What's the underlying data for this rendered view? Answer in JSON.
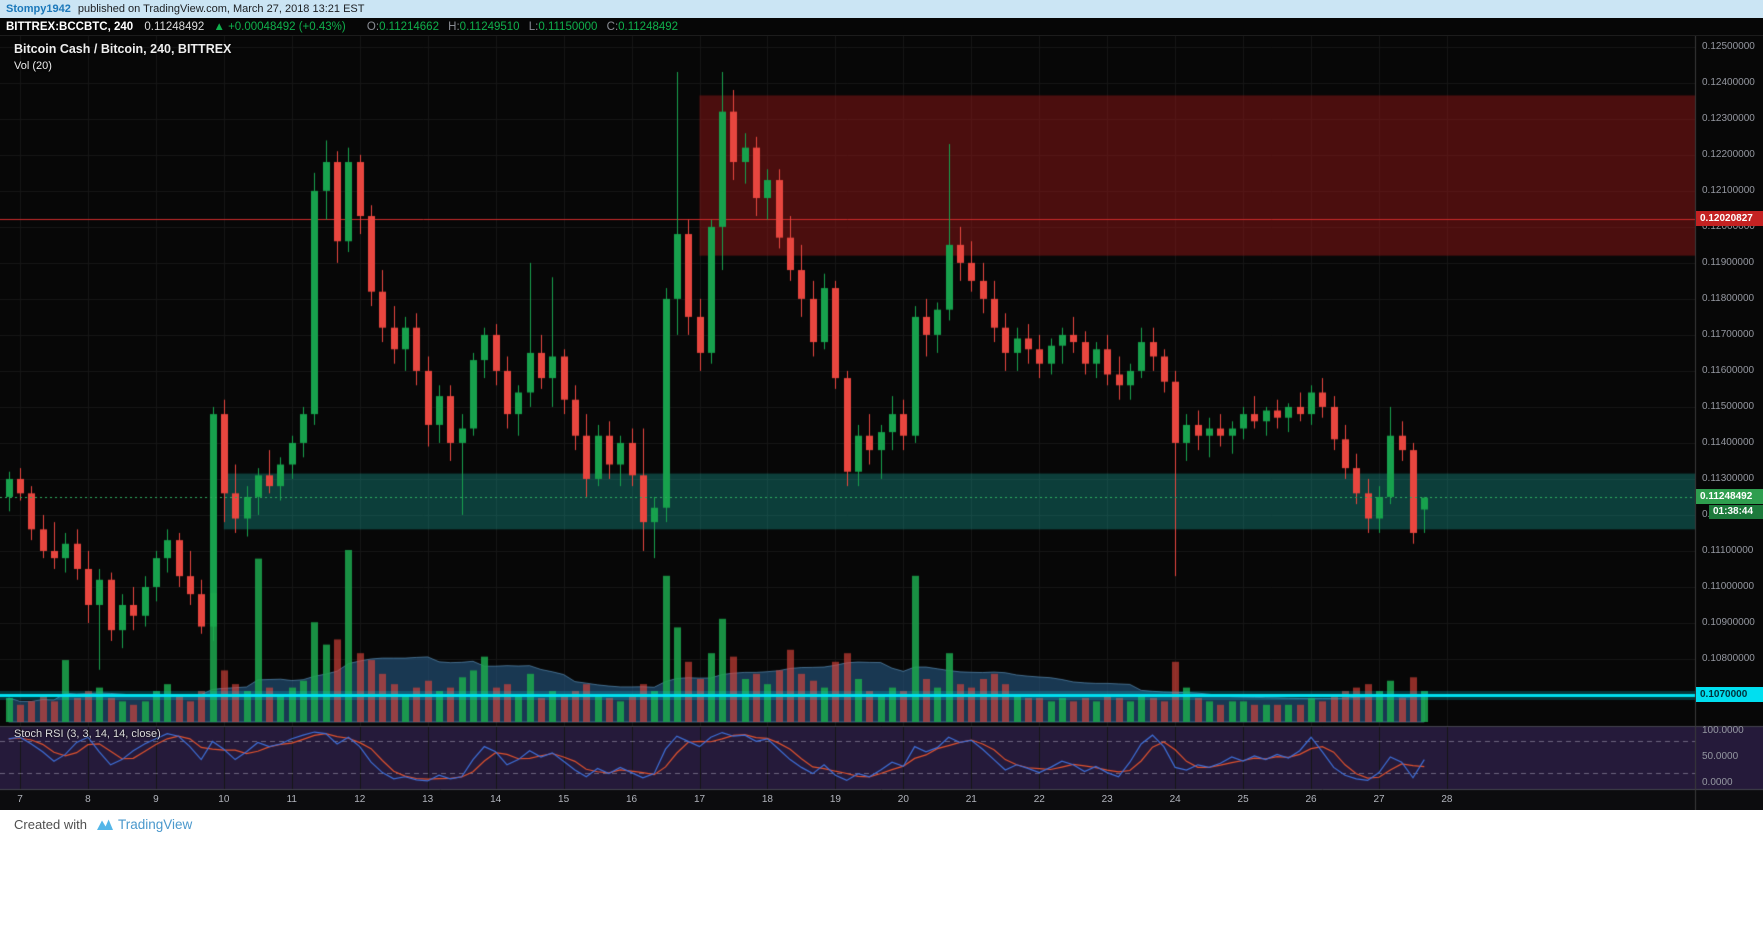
{
  "attribution": {
    "author": "Stompy1942",
    "text": "published on TradingView.com, March 27, 2018 13:21 EST"
  },
  "header": {
    "symbol": "BITTREX:BCCBTC, 240",
    "last_price": "0.11248492",
    "up_arrow": "▲",
    "change": "+0.00048492 (+0.43%)",
    "o_label": "O:",
    "o_value": "0.11214662",
    "h_label": "H:",
    "h_value": "0.11249510",
    "l_label": "L:",
    "l_value": "0.11150000",
    "c_label": "C:",
    "c_value": "0.11248492"
  },
  "legend": {
    "title": "Bitcoin Cash / Bitcoin, 240, BITTREX",
    "indicator": "Vol (20)"
  },
  "stoch_panel": {
    "label": "Stoch RSI (3, 3, 14, 14, close)",
    "axis_labels": [
      "100.0000",
      "50.0000",
      "0.0000"
    ],
    "axis_values": [
      100,
      50,
      0
    ],
    "upper_band": 80,
    "lower_band": 20
  },
  "price_axis": {
    "labels": [
      "0.12500000",
      "0.12400000",
      "0.12300000",
      "0.12200000",
      "0.12100000",
      "0.12000000",
      "0.11900000",
      "0.11800000",
      "0.11700000",
      "0.11600000",
      "0.11500000",
      "0.11400000",
      "0.11300000",
      "0.11200000",
      "0.11100000",
      "0.11000000",
      "0.10900000",
      "0.10800000"
    ],
    "values": [
      0.125,
      0.124,
      0.123,
      0.122,
      0.121,
      0.12,
      0.119,
      0.118,
      0.117,
      0.116,
      0.115,
      0.114,
      0.113,
      0.112,
      0.111,
      0.11,
      0.109,
      0.108
    ]
  },
  "time_axis": {
    "labels": [
      "7",
      "8",
      "9",
      "10",
      "11",
      "12",
      "13",
      "14",
      "15",
      "16",
      "17",
      "18",
      "19",
      "20",
      "21",
      "22",
      "23",
      "24",
      "25",
      "26",
      "27",
      "28"
    ]
  },
  "tags": {
    "red_line_label": "0.12020827",
    "last_price_label": "0.11248492",
    "countdown_label": "01:38:44",
    "cyan_line_label": "0.1070000"
  },
  "footer": {
    "created_with": "Created with",
    "brand": "TradingView"
  },
  "colors": {
    "chart_bg": "#070707",
    "grid": "#161616",
    "up": "#17a14d",
    "down": "#e8463f",
    "vol_up": "rgba(28,168,78,0.85)",
    "vol_down": "rgba(226,70,60,0.62)",
    "vol_ma_fill": "rgba(40,96,144,0.55)",
    "vol_ma_stroke": "rgba(110,170,215,0.55)",
    "red_line": "#cc2b2b",
    "last_price_line": "#2fae5f",
    "cyan_line": "#00dff0",
    "cyan_glow": "rgba(0,223,240,0.22)",
    "zone_resistance": "rgba(170,25,25,0.42)",
    "zone_support": "rgba(21,160,150,0.36)",
    "stoch_bg": "#251a3a",
    "stoch_k": "#3e6fd8",
    "stoch_d": "#e0522e",
    "stoch_band": "rgba(225,220,240,0.38)",
    "time_strip_bg": "#0c0c0e",
    "divider": "#44444e",
    "axis_border": "#3a3a3a",
    "tag_red_bg": "#c42222",
    "tag_green_bg": "#2f9e4f",
    "tag_countdown_bg": "#1d7a3c",
    "tag_cyan_bg": "#00dff0",
    "tag_cyan_text": "#00303a"
  },
  "chart_data": {
    "type": "candlestick",
    "title": "Bitcoin Cash / Bitcoin",
    "exchange": "BITTREX",
    "interval_minutes": 240,
    "x_axis_days": "March 7-28, 2018",
    "candles_per_day": 6,
    "price_range": [
      0.10625,
      0.1253
    ],
    "volume_ma_period": 20,
    "levels": {
      "resistance_line": 0.12020827,
      "last_price": 0.11248492,
      "support_line": 0.107
    },
    "zones": [
      {
        "name": "resistance-zone",
        "color_key": "zone_resistance",
        "start_day_index": 10,
        "price_top": 0.12365,
        "price_bottom": 0.1192
      },
      {
        "name": "support-zone",
        "color_key": "zone_support",
        "start_day_index": 3,
        "price_top": 0.11315,
        "price_bottom": 0.1116
      }
    ],
    "ohlcv": [
      [
        0.1125,
        0.1132,
        0.1121,
        0.113,
        14
      ],
      [
        0.113,
        0.1133,
        0.1124,
        0.1126,
        10
      ],
      [
        0.1126,
        0.1128,
        0.1113,
        0.1116,
        12
      ],
      [
        0.1116,
        0.112,
        0.1108,
        0.111,
        16
      ],
      [
        0.111,
        0.1118,
        0.1105,
        0.1108,
        12
      ],
      [
        0.1108,
        0.1115,
        0.1104,
        0.1112,
        36
      ],
      [
        0.1112,
        0.1116,
        0.1102,
        0.1105,
        14
      ],
      [
        0.1105,
        0.111,
        0.109,
        0.1095,
        18
      ],
      [
        0.1095,
        0.1105,
        0.1077,
        0.1102,
        20
      ],
      [
        0.1102,
        0.1104,
        0.1085,
        0.1088,
        14
      ],
      [
        0.1088,
        0.1098,
        0.1083,
        0.1095,
        12
      ],
      [
        0.1095,
        0.11,
        0.1088,
        0.1092,
        10
      ],
      [
        0.1092,
        0.1103,
        0.1089,
        0.11,
        12
      ],
      [
        0.11,
        0.111,
        0.1096,
        0.1108,
        18
      ],
      [
        0.1108,
        0.1116,
        0.1104,
        0.1113,
        22
      ],
      [
        0.1113,
        0.1115,
        0.11,
        0.1103,
        16
      ],
      [
        0.1103,
        0.111,
        0.1095,
        0.1098,
        12
      ],
      [
        0.1098,
        0.1102,
        0.1087,
        0.1089,
        18
      ],
      [
        0.1089,
        0.115,
        0.1085,
        0.1148,
        75
      ],
      [
        0.1148,
        0.1152,
        0.1118,
        0.1126,
        30
      ],
      [
        0.1126,
        0.1134,
        0.1115,
        0.1119,
        22
      ],
      [
        0.1119,
        0.1128,
        0.1114,
        0.1125,
        18
      ],
      [
        0.1125,
        0.1133,
        0.112,
        0.1131,
        95
      ],
      [
        0.1131,
        0.1138,
        0.1126,
        0.1128,
        20
      ],
      [
        0.1128,
        0.1136,
        0.1124,
        0.1134,
        16
      ],
      [
        0.1134,
        0.1142,
        0.113,
        0.114,
        20
      ],
      [
        0.114,
        0.115,
        0.1136,
        0.1148,
        24
      ],
      [
        0.1148,
        0.1215,
        0.1145,
        0.121,
        58
      ],
      [
        0.121,
        0.1224,
        0.1202,
        0.1218,
        45
      ],
      [
        0.1218,
        0.1221,
        0.119,
        0.1196,
        48
      ],
      [
        0.1196,
        0.1222,
        0.1193,
        0.1218,
        100
      ],
      [
        0.1218,
        0.122,
        0.1198,
        0.1203,
        40
      ],
      [
        0.1203,
        0.1206,
        0.1178,
        0.1182,
        36
      ],
      [
        0.1182,
        0.1188,
        0.1168,
        0.1172,
        28
      ],
      [
        0.1172,
        0.1178,
        0.1162,
        0.1166,
        22
      ],
      [
        0.1166,
        0.1175,
        0.116,
        0.1172,
        16
      ],
      [
        0.1172,
        0.1176,
        0.1156,
        0.116,
        20
      ],
      [
        0.116,
        0.1164,
        0.1139,
        0.1145,
        24
      ],
      [
        0.1145,
        0.1156,
        0.114,
        0.1153,
        18
      ],
      [
        0.1153,
        0.1156,
        0.1135,
        0.114,
        20
      ],
      [
        0.114,
        0.1148,
        0.112,
        0.1144,
        26
      ],
      [
        0.1144,
        0.1165,
        0.1142,
        0.1163,
        30
      ],
      [
        0.1163,
        0.1172,
        0.1158,
        0.117,
        38
      ],
      [
        0.117,
        0.1173,
        0.1156,
        0.116,
        20
      ],
      [
        0.116,
        0.1164,
        0.1144,
        0.1148,
        22
      ],
      [
        0.1148,
        0.1156,
        0.1142,
        0.1154,
        16
      ],
      [
        0.1154,
        0.119,
        0.115,
        0.1165,
        28
      ],
      [
        0.1165,
        0.117,
        0.1155,
        0.1158,
        14
      ],
      [
        0.1158,
        0.1186,
        0.115,
        0.1164,
        18
      ],
      [
        0.1164,
        0.1166,
        0.1148,
        0.1152,
        16
      ],
      [
        0.1152,
        0.1156,
        0.1138,
        0.1142,
        18
      ],
      [
        0.1142,
        0.1148,
        0.1125,
        0.113,
        22
      ],
      [
        0.113,
        0.1145,
        0.1128,
        0.1142,
        16
      ],
      [
        0.1142,
        0.1146,
        0.113,
        0.1134,
        14
      ],
      [
        0.1134,
        0.1142,
        0.1128,
        0.114,
        12
      ],
      [
        0.114,
        0.1144,
        0.1128,
        0.1131,
        16
      ],
      [
        0.1131,
        0.1144,
        0.111,
        0.1118,
        22
      ],
      [
        0.1118,
        0.1125,
        0.1108,
        0.1122,
        18
      ],
      [
        0.1122,
        0.1183,
        0.1118,
        0.118,
        85
      ],
      [
        0.118,
        0.1243,
        0.117,
        0.1198,
        55
      ],
      [
        0.1198,
        0.1202,
        0.117,
        0.1175,
        35
      ],
      [
        0.1175,
        0.118,
        0.116,
        0.1165,
        25
      ],
      [
        0.1165,
        0.1202,
        0.1162,
        0.12,
        40
      ],
      [
        0.12,
        0.1243,
        0.1188,
        0.1232,
        60
      ],
      [
        0.1232,
        0.1238,
        0.1213,
        0.1218,
        38
      ],
      [
        0.1218,
        0.1226,
        0.1212,
        0.1222,
        25
      ],
      [
        0.1222,
        0.1225,
        0.1203,
        0.1208,
        28
      ],
      [
        0.1208,
        0.1216,
        0.1202,
        0.1213,
        22
      ],
      [
        0.1213,
        0.1216,
        0.1194,
        0.1197,
        30
      ],
      [
        0.1197,
        0.1203,
        0.1185,
        0.1188,
        42
      ],
      [
        0.1188,
        0.1195,
        0.1175,
        0.118,
        28
      ],
      [
        0.118,
        0.1185,
        0.1164,
        0.1168,
        24
      ],
      [
        0.1168,
        0.1187,
        0.1166,
        0.1183,
        20
      ],
      [
        0.1183,
        0.1185,
        0.1155,
        0.1158,
        35
      ],
      [
        0.1158,
        0.116,
        0.1128,
        0.1132,
        40
      ],
      [
        0.1132,
        0.1145,
        0.1128,
        0.1142,
        25
      ],
      [
        0.1142,
        0.1148,
        0.1134,
        0.1138,
        18
      ],
      [
        0.1138,
        0.1145,
        0.113,
        0.1143,
        16
      ],
      [
        0.1143,
        0.1153,
        0.1138,
        0.1148,
        20
      ],
      [
        0.1148,
        0.1152,
        0.1138,
        0.1142,
        18
      ],
      [
        0.1142,
        0.1178,
        0.114,
        0.1175,
        85
      ],
      [
        0.1175,
        0.118,
        0.1164,
        0.117,
        25
      ],
      [
        0.117,
        0.1179,
        0.1165,
        0.1177,
        20
      ],
      [
        0.1177,
        0.1223,
        0.1174,
        0.1195,
        40
      ],
      [
        0.1195,
        0.12,
        0.1185,
        0.119,
        22
      ],
      [
        0.119,
        0.1196,
        0.1182,
        0.1185,
        20
      ],
      [
        0.1185,
        0.119,
        0.1176,
        0.118,
        25
      ],
      [
        0.118,
        0.1185,
        0.1168,
        0.1172,
        28
      ],
      [
        0.1172,
        0.1176,
        0.116,
        0.1165,
        22
      ],
      [
        0.1165,
        0.1172,
        0.116,
        0.1169,
        16
      ],
      [
        0.1169,
        0.1173,
        0.1162,
        0.1166,
        14
      ],
      [
        0.1166,
        0.117,
        0.1158,
        0.1162,
        14
      ],
      [
        0.1162,
        0.1169,
        0.1159,
        0.1167,
        12
      ],
      [
        0.1167,
        0.1172,
        0.1162,
        0.117,
        14
      ],
      [
        0.117,
        0.1175,
        0.1165,
        0.1168,
        12
      ],
      [
        0.1168,
        0.1171,
        0.1159,
        0.1162,
        14
      ],
      [
        0.1162,
        0.1168,
        0.1158,
        0.1166,
        12
      ],
      [
        0.1166,
        0.117,
        0.1156,
        0.1159,
        16
      ],
      [
        0.1159,
        0.1164,
        0.1152,
        0.1156,
        14
      ],
      [
        0.1156,
        0.1162,
        0.1152,
        0.116,
        12
      ],
      [
        0.116,
        0.1172,
        0.1158,
        0.1168,
        16
      ],
      [
        0.1168,
        0.1172,
        0.116,
        0.1164,
        14
      ],
      [
        0.1164,
        0.1166,
        0.1154,
        0.1157,
        12
      ],
      [
        0.1157,
        0.116,
        0.1103,
        0.114,
        35
      ],
      [
        0.114,
        0.1148,
        0.1135,
        0.1145,
        20
      ],
      [
        0.1145,
        0.1149,
        0.1138,
        0.1142,
        14
      ],
      [
        0.1142,
        0.1147,
        0.1136,
        0.1144,
        12
      ],
      [
        0.1144,
        0.1148,
        0.1139,
        0.1142,
        10
      ],
      [
        0.1142,
        0.1146,
        0.1137,
        0.1144,
        12
      ],
      [
        0.1144,
        0.115,
        0.1141,
        0.1148,
        12
      ],
      [
        0.1148,
        0.1153,
        0.1144,
        0.1146,
        10
      ],
      [
        0.1146,
        0.115,
        0.1142,
        0.1149,
        10
      ],
      [
        0.1149,
        0.1152,
        0.1144,
        0.1147,
        10
      ],
      [
        0.1147,
        0.1151,
        0.1143,
        0.115,
        10
      ],
      [
        0.115,
        0.1154,
        0.1146,
        0.1148,
        10
      ],
      [
        0.1148,
        0.1156,
        0.1145,
        0.1154,
        14
      ],
      [
        0.1154,
        0.1158,
        0.1147,
        0.115,
        12
      ],
      [
        0.115,
        0.1153,
        0.1138,
        0.1141,
        16
      ],
      [
        0.1141,
        0.1145,
        0.113,
        0.1133,
        18
      ],
      [
        0.1133,
        0.1137,
        0.1123,
        0.1126,
        20
      ],
      [
        0.1126,
        0.113,
        0.1115,
        0.1119,
        22
      ],
      [
        0.1119,
        0.1128,
        0.1115,
        0.1125,
        18
      ],
      [
        0.1125,
        0.115,
        0.1123,
        0.1142,
        24
      ],
      [
        0.1142,
        0.1146,
        0.1135,
        0.1138,
        14
      ],
      [
        0.1138,
        0.114,
        0.1112,
        0.1115,
        26
      ],
      [
        0.11215,
        0.1125,
        0.1115,
        0.11248,
        18
      ]
    ],
    "stoch_rsi_k": [
      85,
      88,
      75,
      60,
      42,
      55,
      78,
      88,
      60,
      35,
      45,
      62,
      75,
      85,
      95,
      90,
      70,
      45,
      80,
      65,
      45,
      60,
      78,
      70,
      75,
      85,
      92,
      98,
      95,
      75,
      88,
      70,
      40,
      20,
      8,
      12,
      6,
      4,
      15,
      8,
      12,
      45,
      70,
      60,
      35,
      45,
      62,
      50,
      58,
      42,
      25,
      12,
      28,
      18,
      30,
      20,
      10,
      18,
      65,
      90,
      80,
      70,
      88,
      97,
      90,
      92,
      80,
      85,
      65,
      45,
      30,
      18,
      35,
      15,
      5,
      18,
      12,
      25,
      40,
      32,
      70,
      60,
      68,
      88,
      78,
      82,
      65,
      45,
      25,
      35,
      28,
      20,
      30,
      42,
      35,
      22,
      32,
      20,
      12,
      40,
      75,
      92,
      70,
      30,
      25,
      35,
      30,
      38,
      50,
      42,
      52,
      45,
      55,
      48,
      62,
      88,
      60,
      30,
      15,
      8,
      5,
      20,
      50,
      40,
      10,
      45
    ]
  }
}
